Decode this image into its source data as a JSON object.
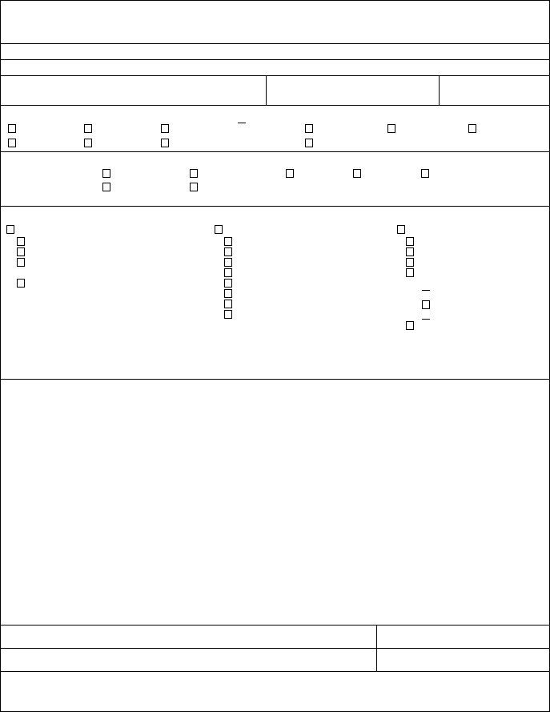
{
  "form": {
    "sections": [
      {
        "id": "header"
      },
      {
        "id": "row-2"
      },
      {
        "id": "row-3"
      },
      {
        "id": "row-4",
        "fields": 3
      },
      {
        "id": "checkbox-row-a",
        "checkboxes": [
          false,
          false,
          false,
          false,
          false,
          false,
          false,
          false,
          false,
          false
        ]
      },
      {
        "id": "checkbox-row-b",
        "checkboxes": [
          false,
          false,
          false,
          false,
          false,
          false,
          false
        ]
      },
      {
        "id": "checkbox-columns",
        "checkboxes": [
          false,
          false,
          false,
          false,
          false,
          false,
          false,
          false,
          false,
          false,
          false,
          false,
          false,
          false,
          false,
          false,
          false,
          false,
          false,
          false,
          false
        ]
      },
      {
        "id": "remarks"
      },
      {
        "id": "signature-row-1",
        "fields": 2
      },
      {
        "id": "signature-row-2",
        "fields": 2
      },
      {
        "id": "footer"
      }
    ]
  }
}
